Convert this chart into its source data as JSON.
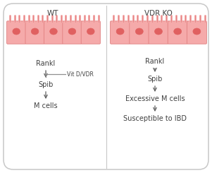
{
  "outer_box_color": "#c8c8c8",
  "cell_fill": "#f5aaaa",
  "cell_stroke": "#e08080",
  "nucleus_fill": "#e06060",
  "villi_color": "#f5aaaa",
  "villi_stroke": "#e08080",
  "divider_color": "#c8c8c8",
  "text_color": "#404040",
  "arrow_color": "#606060",
  "inhibit_line_color": "#909090",
  "wt_title": "WT",
  "vdr_title": "VDR KO",
  "wt_labels": [
    "Rankl",
    "Spib",
    "M cells"
  ],
  "vdr_labels": [
    "Rankl",
    "Spib",
    "Excessive M cells",
    "Susceptible to IBD"
  ],
  "vit_label": "Vit D/VDR",
  "font_size": 7.0
}
